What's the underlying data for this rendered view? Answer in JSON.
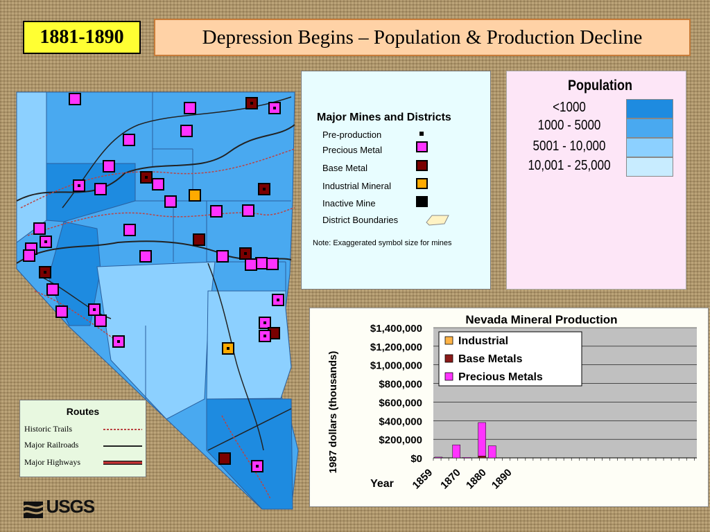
{
  "period": "1881-1890",
  "title": "Depression Begins – Population & Production Decline",
  "mines_legend": {
    "heading": "Major Mines and Districts",
    "items": [
      {
        "label": "Pre-production",
        "color": "#000000",
        "shape": "small-square"
      },
      {
        "label": "Precious Metal",
        "color": "#ff33ff",
        "shape": "square"
      },
      {
        "label": "Base Metal",
        "color": "#7a0000",
        "shape": "square"
      },
      {
        "label": "Industrial Mineral",
        "color": "#ffaa00",
        "shape": "square"
      },
      {
        "label": "Inactive Mine",
        "color": "#000000",
        "shape": "square"
      },
      {
        "label": "District Boundaries",
        "color": "#fff3c4",
        "shape": "polygon"
      }
    ],
    "note": "Note: Exaggerated symbol size for mines"
  },
  "population_legend": {
    "heading": "Population",
    "classes": [
      {
        "label": "<1000",
        "color": "#1e8be0"
      },
      {
        "label": "1000 - 5000",
        "color": "#49a9f0"
      },
      {
        "label": "5001 - 10,000",
        "color": "#8cd0ff"
      },
      {
        "label": "10,001 - 25,000",
        "color": "#c8ecff"
      }
    ]
  },
  "routes_legend": {
    "heading": "Routes",
    "items": [
      "Historic Trails",
      "Major Railroads",
      "Major Highways"
    ]
  },
  "logo": "USGS",
  "chart_data": {
    "type": "bar",
    "title": "Nevada Mineral Production",
    "ylabel": "1987 dollars (thousands)",
    "xlabel": "Year",
    "ylim": [
      0,
      1400000
    ],
    "y_ticks": [
      "$1,400,000",
      "$1,200,000",
      "$1,000,000",
      "$800,000",
      "$600,000",
      "$400,000",
      "$200,000",
      "$0"
    ],
    "x_tick_labels": [
      "1859",
      "1870",
      "1880",
      "1890"
    ],
    "series": [
      {
        "name": "Industrial",
        "color": "#ffb347",
        "values": [
          0,
          0,
          0,
          0,
          0,
          0,
          0
        ]
      },
      {
        "name": "Base Metals",
        "color": "#8b1a1a",
        "values": [
          0,
          0,
          0,
          20000,
          0,
          0,
          0
        ]
      },
      {
        "name": "Precious Metals",
        "color": "#ff33ff",
        "values": [
          8000,
          140000,
          5000,
          360000,
          130000,
          0,
          0
        ]
      }
    ],
    "bar_years": [
      1859,
      1866,
      1870,
      1876,
      1880,
      1885,
      1890
    ]
  }
}
